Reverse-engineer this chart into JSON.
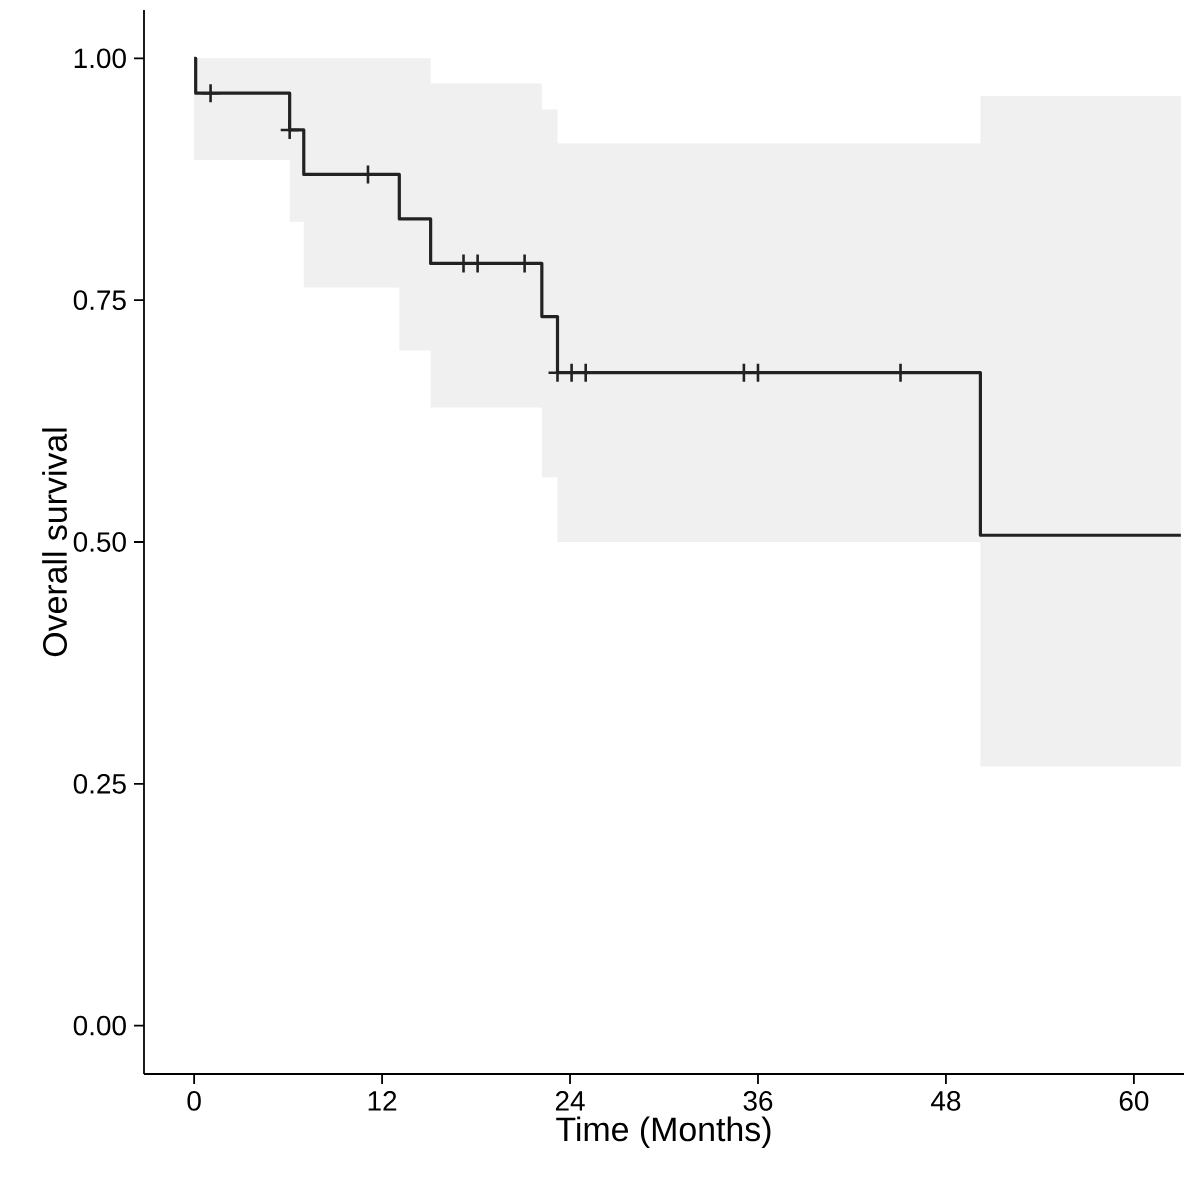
{
  "chart_data": {
    "type": "step",
    "xlabel": "Time (Months)",
    "ylabel": "Overall survival",
    "xlim": [
      -3.2,
      63.2
    ],
    "ylim": [
      -0.05,
      1.05
    ],
    "xticks": [
      0,
      12,
      24,
      36,
      48,
      60
    ],
    "yticks": [
      {
        "value": 0,
        "label": "0.00"
      },
      {
        "value": 0.25,
        "label": "0.25"
      },
      {
        "value": 0.5,
        "label": "0.50"
      },
      {
        "value": 0.75,
        "label": "0.75"
      },
      {
        "value": 1,
        "label": "1.00"
      }
    ],
    "grid": false,
    "legend": false,
    "series": [
      {
        "color": "#222222",
        "x": [
          0,
          0.1,
          6.1,
          7.0,
          13.1,
          15.1,
          22.2,
          23.2,
          50.2,
          63
        ],
        "values": [
          1.0,
          0.964,
          0.926,
          0.88,
          0.834,
          0.788,
          0.733,
          0.675,
          0.507,
          0.507
        ],
        "lower": [
          0.895,
          0.895,
          0.831,
          0.763,
          0.698,
          0.639,
          0.567,
          0.5,
          0.268,
          0.268
        ],
        "upper": [
          1.0,
          1.0,
          1.0,
          1.0,
          1.0,
          0.974,
          0.947,
          0.912,
          0.961,
          0.961
        ]
      },
      {
        "type": "scatter",
        "marker": "cross",
        "color": "#222222",
        "x": [
          1.05,
          6.1,
          11.1,
          17.2,
          18.1,
          21.1,
          23.2,
          24.1,
          25.0,
          35.1,
          36.0,
          45.1
        ],
        "values": [
          0.964,
          0.926,
          0.88,
          0.788,
          0.788,
          0.788,
          0.675,
          0.675,
          0.675,
          0.675,
          0.675,
          0.675
        ]
      }
    ]
  }
}
